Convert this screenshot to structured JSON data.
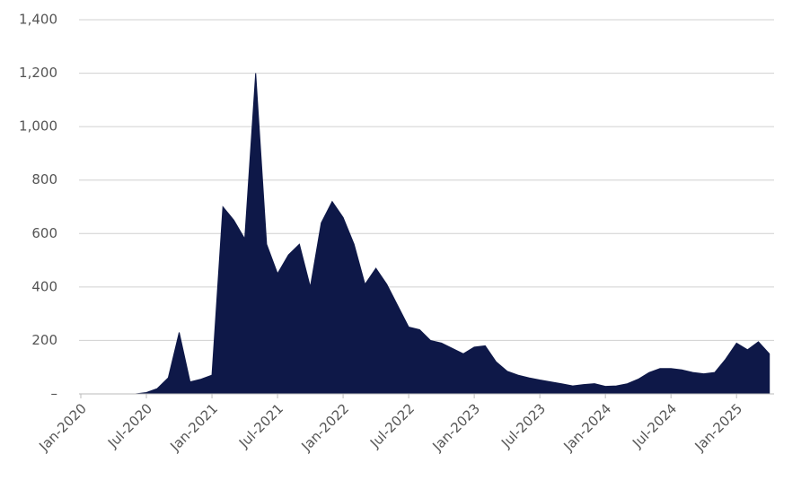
{
  "chart_data": {
    "type": "area",
    "color": "#0e1848",
    "grid": true,
    "x": [
      "Jan-2020",
      "Feb-2020",
      "Mar-2020",
      "Apr-2020",
      "May-2020",
      "Jun-2020",
      "Jul-2020",
      "Aug-2020",
      "Sep-2020",
      "Oct-2020",
      "Nov-2020",
      "Dec-2020",
      "Jan-2021",
      "Feb-2021",
      "Mar-2021",
      "Apr-2021",
      "May-2021",
      "Jun-2021",
      "Jul-2021",
      "Aug-2021",
      "Sep-2021",
      "Oct-2021",
      "Nov-2021",
      "Dec-2021",
      "Jan-2022",
      "Feb-2022",
      "Mar-2022",
      "Apr-2022",
      "May-2022",
      "Jun-2022",
      "Jul-2022",
      "Aug-2022",
      "Sep-2022",
      "Oct-2022",
      "Nov-2022",
      "Dec-2022",
      "Jan-2023",
      "Feb-2023",
      "Mar-2023",
      "Apr-2023",
      "May-2023",
      "Jun-2023",
      "Jul-2023",
      "Aug-2023",
      "Sep-2023",
      "Oct-2023",
      "Nov-2023",
      "Dec-2023",
      "Jan-2024",
      "Feb-2024",
      "Mar-2024",
      "Apr-2024",
      "May-2024",
      "Jun-2024",
      "Jul-2024",
      "Aug-2024",
      "Sep-2024",
      "Oct-2024",
      "Nov-2024",
      "Dec-2024",
      "Jan-2025",
      "Feb-2025",
      "Mar-2025",
      "Apr-2025"
    ],
    "values": [
      0,
      0,
      0,
      0,
      0,
      0,
      5,
      20,
      60,
      230,
      45,
      55,
      70,
      700,
      650,
      580,
      1200,
      560,
      450,
      520,
      560,
      400,
      640,
      720,
      660,
      560,
      410,
      470,
      410,
      330,
      250,
      240,
      200,
      190,
      170,
      150,
      175,
      180,
      120,
      85,
      70,
      60,
      52,
      45,
      38,
      30,
      35,
      38,
      28,
      30,
      38,
      55,
      80,
      95,
      95,
      90,
      80,
      75,
      80,
      130,
      190,
      165,
      195,
      150
    ],
    "ylim": [
      0,
      1400
    ],
    "yticks": [
      {
        "value": 0,
        "label": "–"
      },
      200,
      400,
      600,
      800,
      {
        "value": 1000,
        "label": "1,000"
      },
      {
        "value": 1200,
        "label": "1,200"
      },
      {
        "value": 1400,
        "label": "1,400"
      }
    ]
  }
}
